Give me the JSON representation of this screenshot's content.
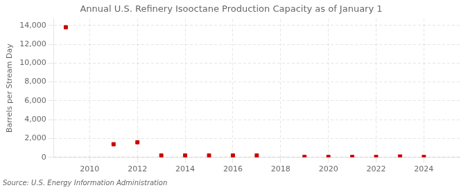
{
  "chart_data": {
    "type": "scatter",
    "title": "Annual U.S. Refinery Isooctane Production Capacity as of January 1",
    "ylabel": "Barrels per Stream Day",
    "annotation": "Source: U.S. Energy Information Administration",
    "x": [
      2009,
      2011,
      2012,
      2013,
      2014,
      2015,
      2016,
      2017,
      2019,
      2020,
      2021,
      2022,
      2023,
      2024
    ],
    "values": [
      13800,
      1400,
      1600,
      200,
      200,
      200,
      200,
      200,
      50,
      50,
      50,
      50,
      100,
      50
    ],
    "color": "#cc0000",
    "marker": "square",
    "xlim": [
      2008.5,
      2025.5
    ],
    "xticks": [
      2010,
      2012,
      2014,
      2016,
      2018,
      2020,
      2022,
      2024
    ],
    "ylim": [
      0,
      14667
    ],
    "yticks": [
      0,
      {
        "value": 2000,
        "label": "2,000"
      },
      {
        "value": 4000,
        "label": "4,000"
      },
      {
        "value": 6000,
        "label": "6,000"
      },
      {
        "value": 8000,
        "label": "8,000"
      },
      {
        "value": 10000,
        "label": "10,000"
      },
      {
        "value": 12000,
        "label": "12,000"
      },
      {
        "value": 14000,
        "label": "14,000"
      }
    ],
    "grid": true
  }
}
